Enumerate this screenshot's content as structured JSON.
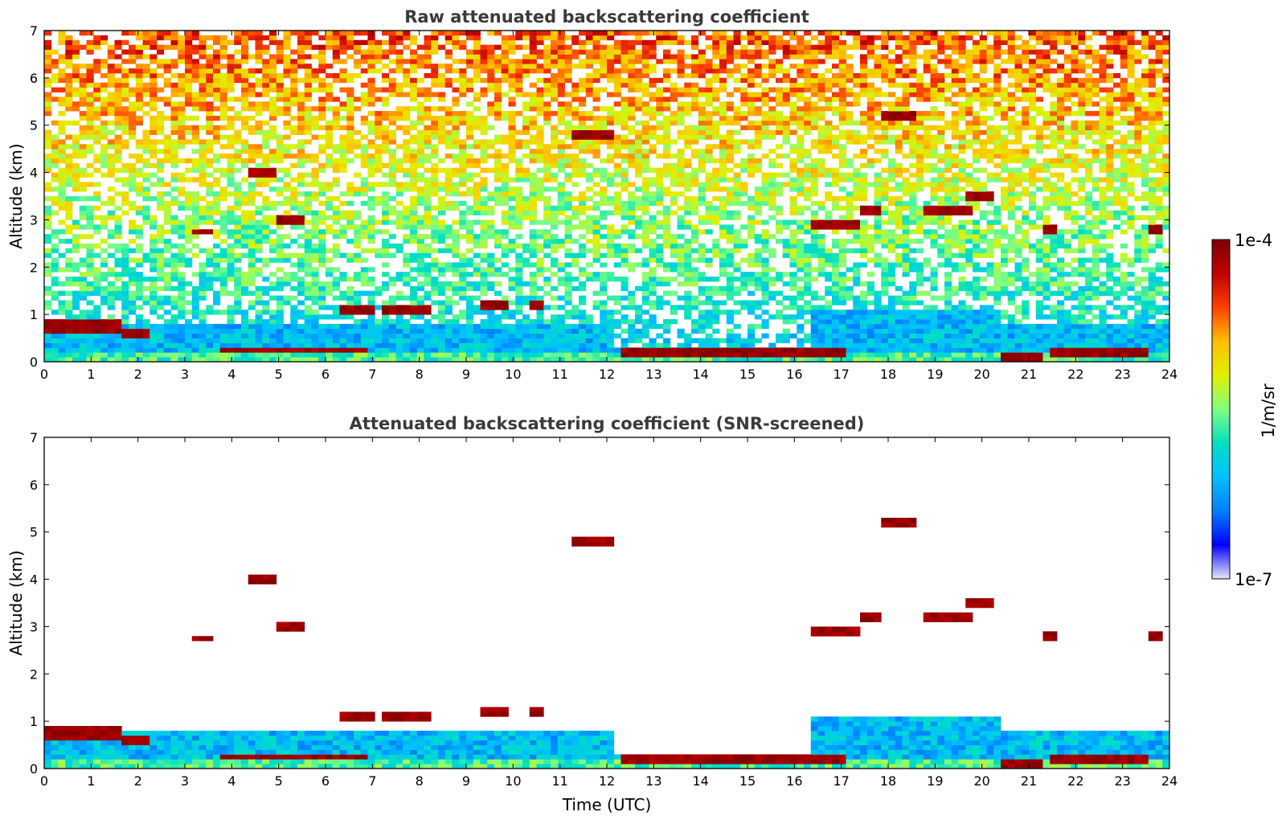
{
  "chart_data": [
    {
      "type": "heatmap",
      "title": "Raw attenuated backscattering coefficient",
      "xlabel": "",
      "ylabel": "Altitude (km)",
      "xlim": [
        0,
        24
      ],
      "ylim": [
        0,
        7
      ],
      "xticks": [
        "0",
        "1",
        "2",
        "3",
        "4",
        "5",
        "6",
        "7",
        "8",
        "9",
        "10",
        "11",
        "12",
        "13",
        "14",
        "15",
        "16",
        "17",
        "18",
        "19",
        "20",
        "21",
        "22",
        "23",
        "24"
      ],
      "yticks": [
        "0",
        "1",
        "2",
        "3",
        "4",
        "5",
        "6",
        "7"
      ],
      "screened": false,
      "features": [
        {
          "kind": "cloud",
          "t": [
            0.0,
            1.6
          ],
          "z": 0.75
        },
        {
          "kind": "cloud",
          "t": [
            1.6,
            2.2
          ],
          "z": 0.6
        },
        {
          "kind": "cloud",
          "t": [
            3.8,
            6.9
          ],
          "z": 0.25
        },
        {
          "kind": "cloud",
          "t": [
            12.3,
            17.1
          ],
          "z": 0.2
        },
        {
          "kind": "cloud",
          "t": [
            21.5,
            23.6
          ],
          "z": 0.22
        },
        {
          "kind": "cloud",
          "t": [
            20.4,
            21.3
          ],
          "z": 0.05
        },
        {
          "kind": "cloud",
          "t": [
            6.3,
            7.0
          ],
          "z": 1.15
        },
        {
          "kind": "cloud",
          "t": [
            7.2,
            8.2
          ],
          "z": 1.05
        },
        {
          "kind": "cloud",
          "t": [
            9.3,
            9.9
          ],
          "z": 1.18
        },
        {
          "kind": "cloud",
          "t": [
            10.3,
            10.6
          ],
          "z": 1.2
        },
        {
          "kind": "cloud",
          "t": [
            3.2,
            3.6
          ],
          "z": 2.75
        },
        {
          "kind": "cloud",
          "t": [
            4.4,
            5.0
          ],
          "z": 4.05
        },
        {
          "kind": "cloud",
          "t": [
            5.0,
            5.6
          ],
          "z": 3.0
        },
        {
          "kind": "cloud",
          "t": [
            11.2,
            12.2
          ],
          "z": 4.8
        },
        {
          "kind": "cloud",
          "t": [
            16.4,
            17.4
          ],
          "z": 2.9
        },
        {
          "kind": "cloud",
          "t": [
            17.4,
            17.8
          ],
          "z": 3.2
        },
        {
          "kind": "cloud",
          "t": [
            17.9,
            18.6
          ],
          "z": 5.15
        },
        {
          "kind": "cloud",
          "t": [
            18.8,
            19.8
          ],
          "z": 3.2
        },
        {
          "kind": "cloud",
          "t": [
            19.6,
            20.2
          ],
          "z": 3.5
        },
        {
          "kind": "cloud",
          "t": [
            21.3,
            21.6
          ],
          "z": 2.8
        },
        {
          "kind": "cloud",
          "t": [
            23.6,
            23.8
          ],
          "z": 2.8
        }
      ]
    },
    {
      "type": "heatmap",
      "title": "Attenuated backscattering coefficient (SNR-screened)",
      "xlabel": "Time (UTC)",
      "ylabel": "Altitude (km)",
      "xlim": [
        0,
        24
      ],
      "ylim": [
        0,
        7
      ],
      "xticks": [
        "0",
        "1",
        "2",
        "3",
        "4",
        "5",
        "6",
        "7",
        "8",
        "9",
        "10",
        "11",
        "12",
        "13",
        "14",
        "15",
        "16",
        "17",
        "18",
        "19",
        "20",
        "21",
        "22",
        "23",
        "24"
      ],
      "yticks": [
        "0",
        "1",
        "2",
        "3",
        "4",
        "5",
        "6",
        "7"
      ],
      "screened": true
    }
  ],
  "colorbar": {
    "label": "1/m/sr",
    "max_label": "1e-4",
    "min_label": "1e-7",
    "colormap": "jet",
    "colors": [
      "#e8e8f8",
      "#0000ff",
      "#0080ff",
      "#00c0ff",
      "#00e0c0",
      "#80ff80",
      "#e0f000",
      "#ffc000",
      "#ff4000",
      "#c00000",
      "#800000"
    ]
  }
}
